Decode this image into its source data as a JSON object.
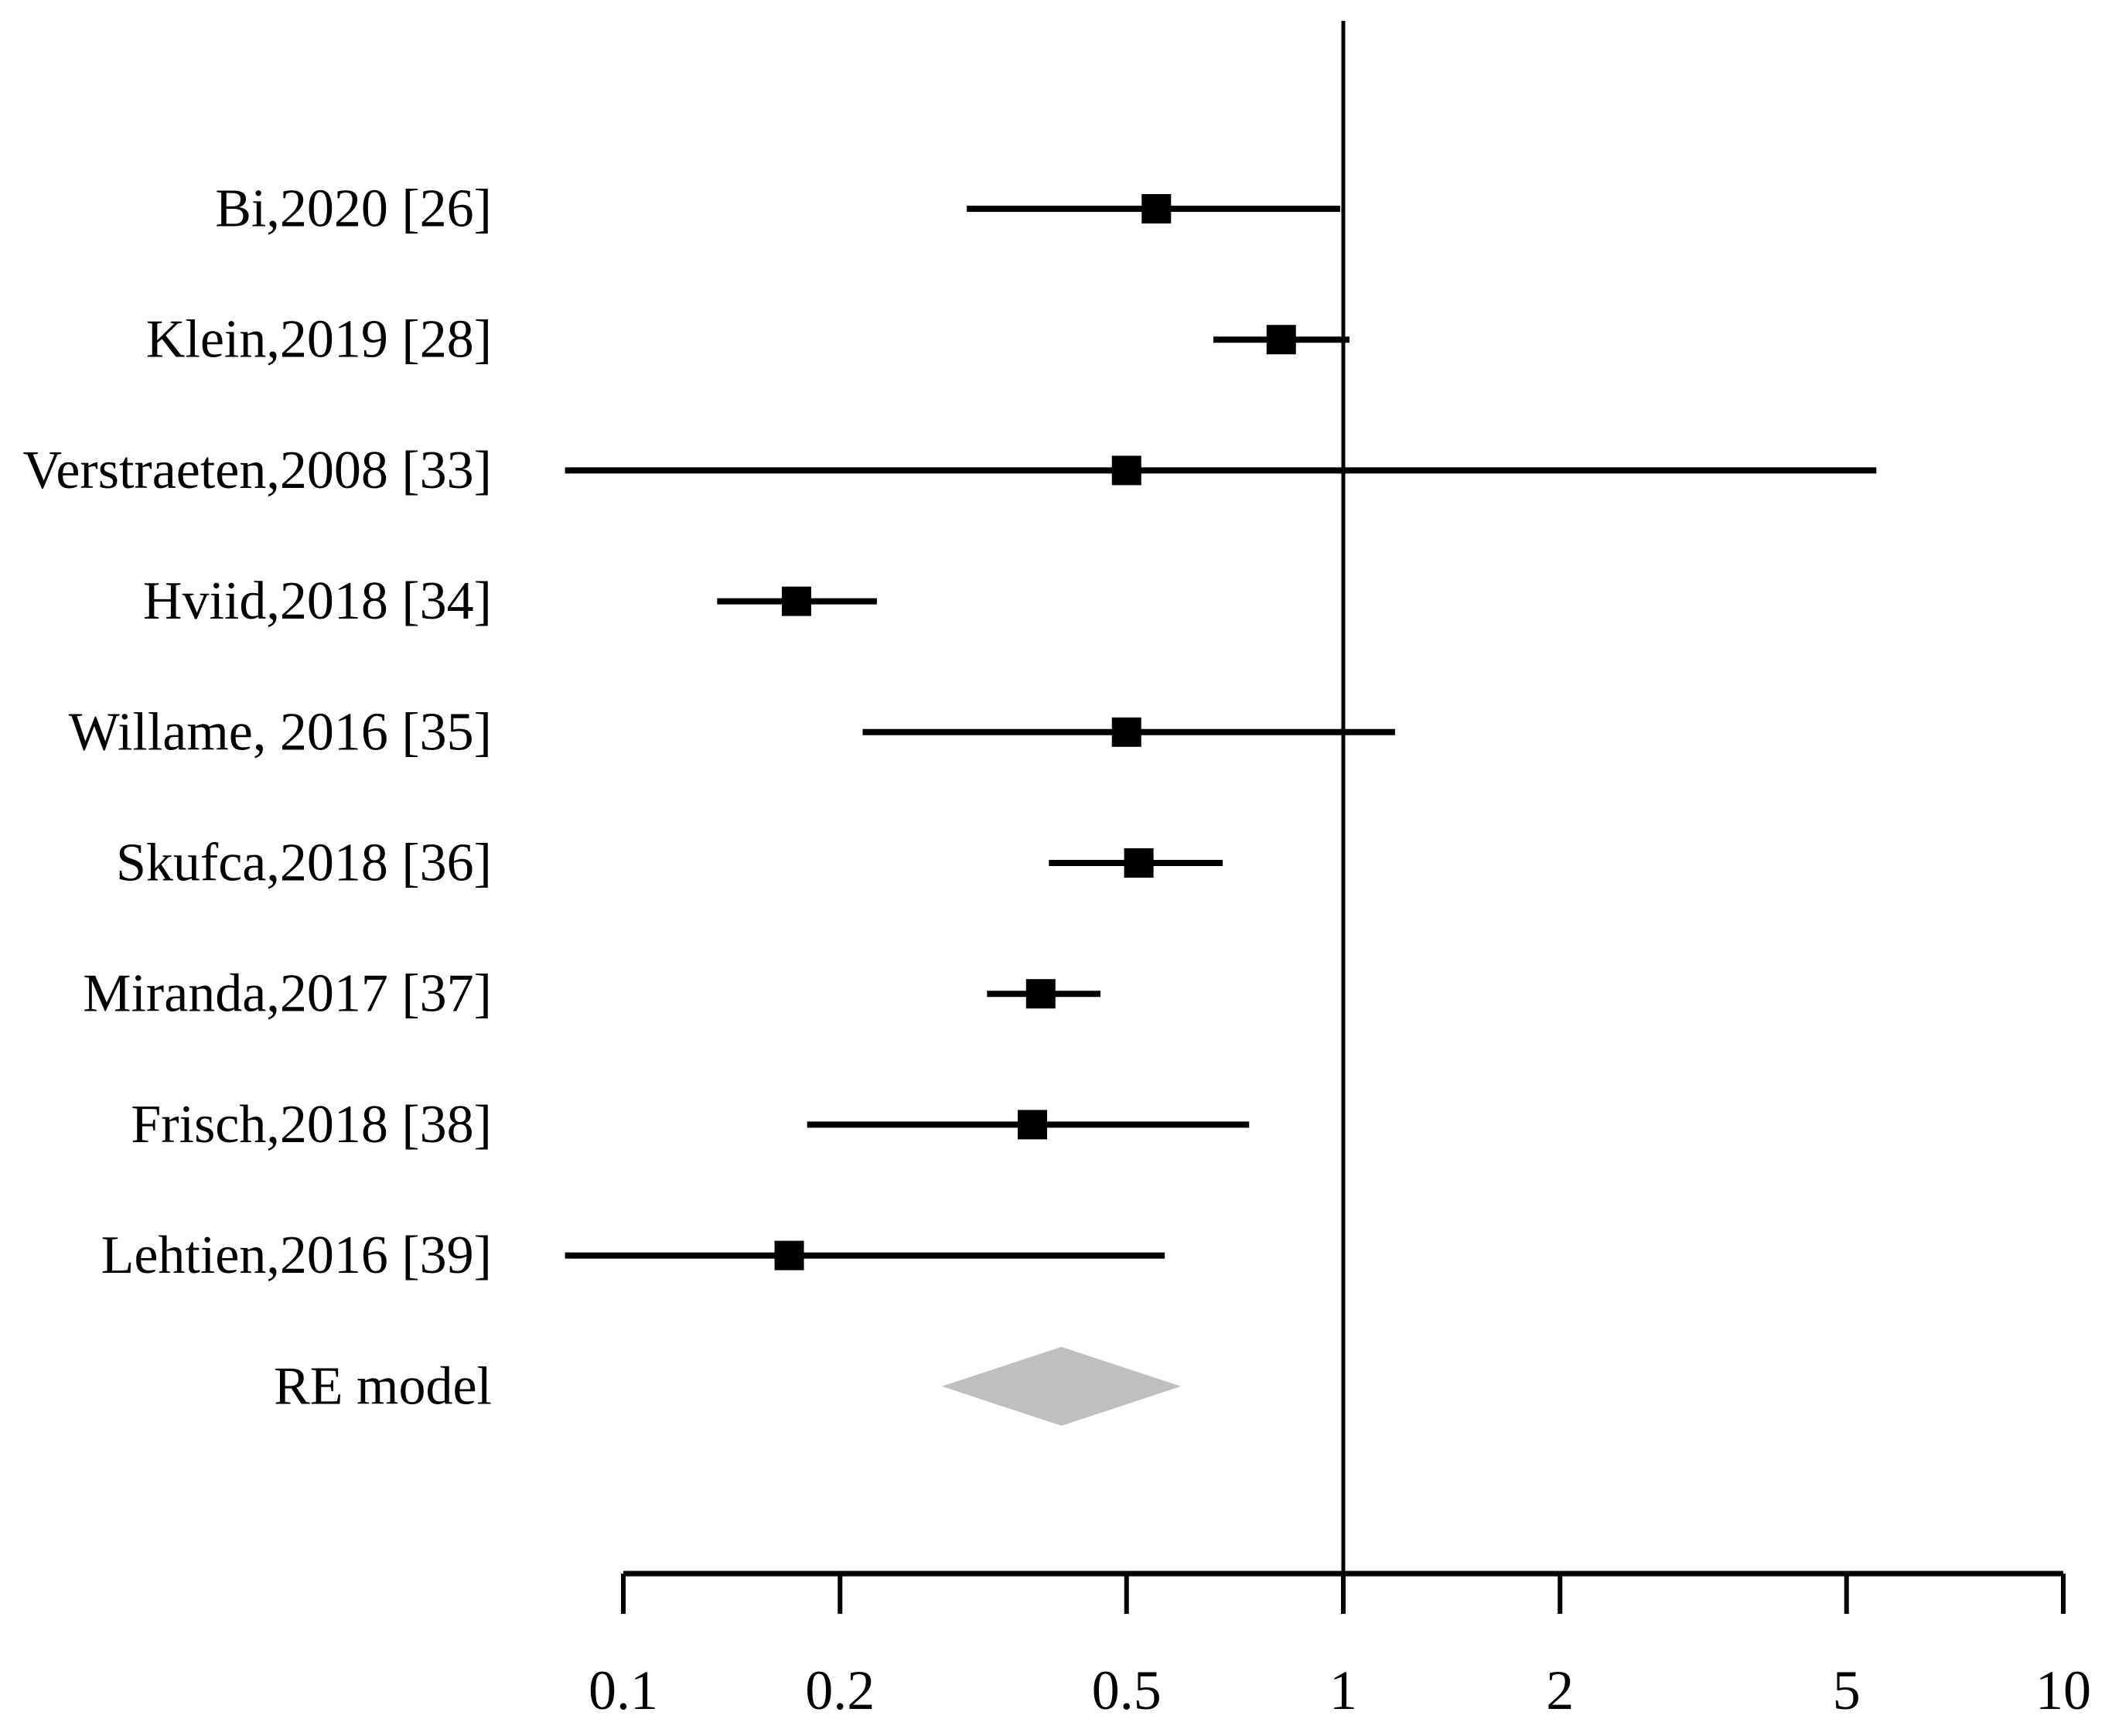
{
  "figure": {
    "background": "#ffffff",
    "ink_color": "#000000",
    "diamond_color": "#bfbfbf"
  },
  "chart_data": {
    "type": "forest",
    "scale": "log10",
    "x_range": [
      0.1,
      10
    ],
    "x_ticks": [
      0.1,
      0.2,
      0.5,
      1,
      2,
      5,
      10
    ],
    "x_tick_labels": [
      "0.1",
      "0.2",
      "0.5",
      "1",
      "2",
      "5",
      "10"
    ],
    "reference_line_value": 1,
    "grid": false,
    "legend": "none",
    "title": "",
    "xlabel": "",
    "ylabel": "",
    "studies": [
      {
        "label": "Bi,2020 [26]",
        "estimate": 0.55,
        "ci_low": 0.3,
        "ci_high": 0.99
      },
      {
        "label": "Klein,2019 [28]",
        "estimate": 0.82,
        "ci_low": 0.66,
        "ci_high": 1.02
      },
      {
        "label": "Verstraeten,2008 [33]",
        "estimate": 0.5,
        "ci_low": 0.083,
        "ci_high": 5.5
      },
      {
        "label": "Hviid,2018 [34]",
        "estimate": 0.174,
        "ci_low": 0.135,
        "ci_high": 0.225
      },
      {
        "label": "Willame, 2016 [35]",
        "estimate": 0.5,
        "ci_low": 0.215,
        "ci_high": 1.18
      },
      {
        "label": "Skufca,2018 [36]",
        "estimate": 0.52,
        "ci_low": 0.39,
        "ci_high": 0.68
      },
      {
        "label": "Miranda,2017 [37]",
        "estimate": 0.38,
        "ci_low": 0.32,
        "ci_high": 0.46
      },
      {
        "label": "Frisch,2018 [38]",
        "estimate": 0.37,
        "ci_low": 0.18,
        "ci_high": 0.74
      },
      {
        "label": "Lehtien,2016 [39]",
        "estimate": 0.17,
        "ci_low": 0.083,
        "ci_high": 0.565
      }
    ],
    "summary": {
      "label": "RE model",
      "estimate": 0.406,
      "ci_low": 0.277,
      "ci_high": 0.595,
      "marker": "diamond"
    }
  }
}
